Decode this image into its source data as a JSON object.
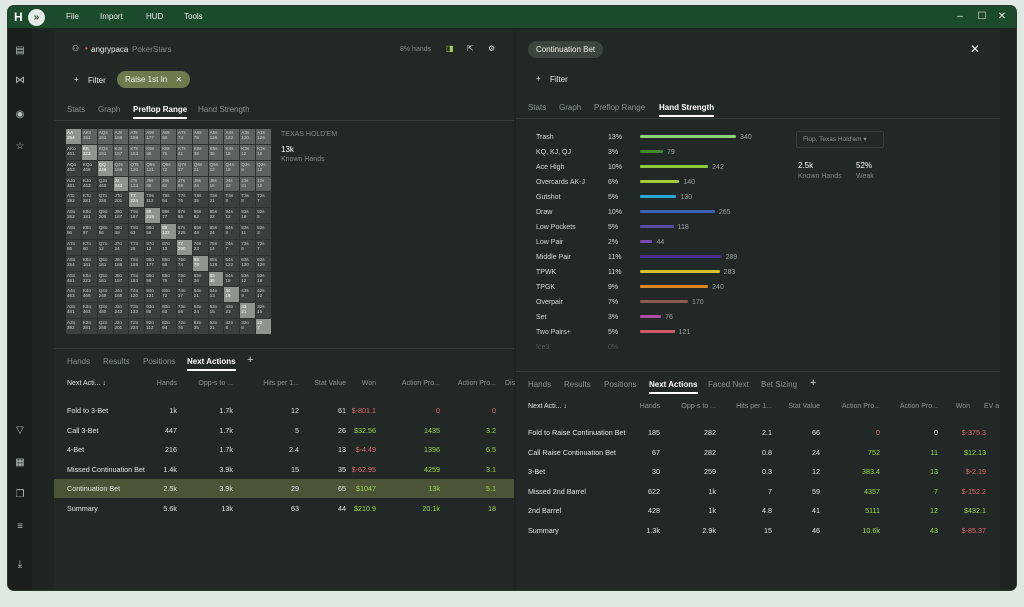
{
  "titlebar": {
    "menu": [
      "File",
      "Import",
      "HUD",
      "Tools"
    ]
  },
  "left": {
    "player": "angrypaca",
    "site": "PokerStars",
    "hands_count": "8% hands",
    "filter_label": "Filter",
    "chip_label": "Raise 1st In",
    "tabs": [
      "Stats",
      "Graph",
      "Preflop Range",
      "Hand Strength"
    ],
    "game": "TEXAS HOLD'EM",
    "hands_value": "13k",
    "hands_label": "Known Hands",
    "bottom_tabs": [
      "Hands",
      "Results",
      "Positions",
      "Next Actions"
    ],
    "columns": [
      "Next Acti...",
      "Hands",
      "Opp-s to ...",
      "Hits per 1...",
      "Stat Value",
      "Won",
      "Action Pro...",
      "Action Pro...",
      "Dis"
    ],
    "rows": [
      [
        "Fold to 3-Bet",
        "1k",
        "1.7k",
        "12",
        "61",
        "$-801.1",
        "0",
        "0"
      ],
      [
        "Call 3-Bet",
        "447",
        "1.7k",
        "5",
        "26",
        "$32.56",
        "1435",
        "3.2"
      ],
      [
        "4-Bet",
        "216",
        "1.7k",
        "2.4",
        "13",
        "$-4.49",
        "1396",
        "6.5"
      ],
      [
        "Missed Continuation Bet",
        "1.4k",
        "3.9k",
        "15",
        "35",
        "$-62.95",
        "4259",
        "3.1"
      ],
      [
        "Continuation Bet",
        "2.5k",
        "3.9k",
        "29",
        "65",
        "$1047",
        "13k",
        "5.1"
      ],
      [
        "Summary",
        "5.6k",
        "13k",
        "63",
        "44",
        "$210.9",
        "20.1k",
        "18"
      ]
    ]
  },
  "grid": {
    "ranks": [
      "A",
      "K",
      "Q",
      "J",
      "T",
      "9",
      "8",
      "7",
      "6",
      "5",
      "4",
      "3",
      "2"
    ],
    "top": [
      "254",
      "161",
      "161",
      "168",
      "159",
      "177",
      "66",
      "74",
      "78",
      "126",
      "122",
      "130",
      "126",
      "461",
      "223",
      "161",
      "157",
      "153",
      "96",
      "75",
      "41",
      "36",
      "35",
      "15",
      "12",
      "16",
      "463",
      "466",
      "249",
      "168",
      "120",
      "121",
      "72",
      "37",
      "21",
      "13",
      "16",
      "9",
      "12",
      "481",
      "463",
      "460",
      "243",
      "133",
      "86",
      "62",
      "59",
      "24",
      "16",
      "23",
      "21",
      "15",
      "392",
      "281",
      "256",
      "201",
      "224",
      "112",
      "94",
      "76",
      "35",
      "21",
      "8",
      "8",
      "7",
      "262",
      "181",
      "209",
      "167",
      "167",
      "219",
      "77",
      "66",
      "62",
      "22",
      "12",
      "18",
      "5",
      "96",
      "97",
      "66",
      "49",
      "63",
      "56",
      "122",
      "225",
      "49",
      "24",
      "8",
      "11",
      "3",
      "86",
      "60",
      "12",
      "24",
      "25",
      "12",
      "13",
      "200",
      "23",
      "14",
      "7",
      "6",
      "7"
    ]
  },
  "right": {
    "chip_label": "Continuation Bet",
    "filter_label": "Filter",
    "tabs": [
      "Stats",
      "Graph",
      "Preflop Range",
      "Hand Strength"
    ],
    "dropdown": "Flop, Texas Hold'em",
    "known_value": "2.5k",
    "known_label": "Known Hands",
    "weak_value": "52%",
    "weak_label": "Weak",
    "strength": [
      {
        "name": "Trash",
        "pct": "13%",
        "count": "340",
        "frac": 1.0,
        "color": "#8fd17a"
      },
      {
        "name": "KQ, KJ, QJ",
        "pct": "3%",
        "count": "79",
        "frac": 0.24,
        "color": "#3f8a2a"
      },
      {
        "name": "Ace High",
        "pct": "10%",
        "count": "242",
        "frac": 0.71,
        "color": "#8ccb3c"
      },
      {
        "name": "Overcards AK-J",
        "pct": "6%",
        "count": "140",
        "frac": 0.41,
        "color": "#a6c93a"
      },
      {
        "name": "Gutshot",
        "pct": "5%",
        "count": "130",
        "frac": 0.38,
        "color": "#2aa7d8"
      },
      {
        "name": "Draw",
        "pct": "10%",
        "count": "265",
        "frac": 0.78,
        "color": "#3b62b8"
      },
      {
        "name": "Low Pockets",
        "pct": "5%",
        "count": "118",
        "frac": 0.35,
        "color": "#5a4aa8"
      },
      {
        "name": "Low Pair",
        "pct": "2%",
        "count": "44",
        "frac": 0.13,
        "color": "#7b4ab0"
      },
      {
        "name": "Middle Pair",
        "pct": "11%",
        "count": "289",
        "frac": 0.85,
        "color": "#4a2e8a"
      },
      {
        "name": "TPWK",
        "pct": "11%",
        "count": "283",
        "frac": 0.83,
        "color": "#d3c32a"
      },
      {
        "name": "TPGK",
        "pct": "9%",
        "count": "240",
        "frac": 0.71,
        "color": "#d9861f"
      },
      {
        "name": "Overpair",
        "pct": "7%",
        "count": "170",
        "frac": 0.5,
        "color": "#8c5a50"
      },
      {
        "name": "Set",
        "pct": "3%",
        "count": "76",
        "frac": 0.22,
        "color": "#b04aa0"
      },
      {
        "name": "Two Pairs+",
        "pct": "5%",
        "count": "121",
        "frac": 0.36,
        "color": "#d05a6a"
      },
      {
        "name": "Ice3",
        "pct": "0%",
        "count": "",
        "frac": 0,
        "color": "#555"
      }
    ],
    "bottom_tabs": [
      "Hands",
      "Results",
      "Positions",
      "Next Actions",
      "Faced Next",
      "Bet Sizing"
    ],
    "columns": [
      "Next Acti...",
      "Hands",
      "Opp-s to ...",
      "Hits per 1...",
      "Stat Value",
      "Action Pro...",
      "Action Pro...",
      "Won",
      "EV a"
    ],
    "rows": [
      [
        "Fold to Raise Continuation Bet",
        "185",
        "282",
        "2.1",
        "66",
        "0",
        "0",
        "$-375.3"
      ],
      [
        "Call Raise Continuation Bet",
        "67",
        "282",
        "0.8",
        "24",
        "752",
        "11",
        "$12.13"
      ],
      [
        "3-Bet",
        "30",
        "259",
        "0.3",
        "12",
        "383.4",
        "13",
        "$-2.19"
      ],
      [
        "Missed 2nd Barrel",
        "622",
        "1k",
        "7",
        "59",
        "4357",
        "7",
        "$-152.2"
      ],
      [
        "2nd Barrel",
        "428",
        "1k",
        "4.8",
        "41",
        "5111",
        "12",
        "$432.1"
      ],
      [
        "Summary",
        "1.3k",
        "2.9k",
        "15",
        "46",
        "10.6k",
        "43",
        "$-85.37"
      ]
    ]
  }
}
